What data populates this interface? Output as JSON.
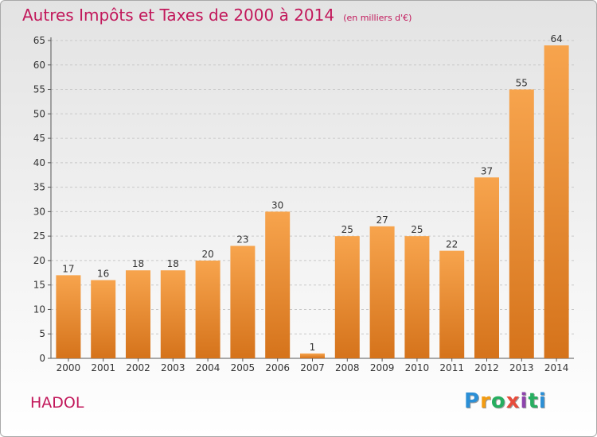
{
  "chart_data": {
    "type": "bar",
    "title": "Autres Impôts et Taxes de 2000 à 2014",
    "subtitle": "(en milliers d'€)",
    "categories": [
      "2000",
      "2001",
      "2002",
      "2003",
      "2004",
      "2005",
      "2006",
      "2007",
      "2008",
      "2009",
      "2010",
      "2011",
      "2012",
      "2013",
      "2014"
    ],
    "values": [
      17,
      16,
      18,
      18,
      20,
      23,
      30,
      1,
      25,
      27,
      25,
      22,
      37,
      55,
      64
    ],
    "ylim": [
      0,
      65
    ],
    "yticks": [
      0,
      5,
      10,
      15,
      20,
      25,
      30,
      35,
      40,
      45,
      50,
      55,
      60,
      65
    ],
    "grid": true,
    "bar_color_light": "#f7a44d",
    "bar_color_dark": "#d5731b"
  },
  "commune": "HADOL",
  "logo": {
    "letters": [
      "P",
      "r",
      "o",
      "x",
      "i",
      "t",
      "i"
    ],
    "colors": [
      "#2b8fd6",
      "#f39c12",
      "#27ae60",
      "#e74c3c",
      "#8e44ad",
      "#27ae60",
      "#2b8fd6"
    ]
  }
}
